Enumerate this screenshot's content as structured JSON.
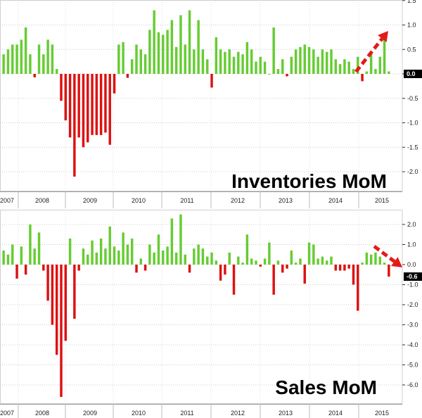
{
  "chart_data": [
    {
      "type": "bar",
      "title": "Inventories MoM",
      "xlabel": "",
      "ylabel": "",
      "ylim": [
        -2.5,
        1.5
      ],
      "yticks": [
        "1.5",
        "1.0",
        "0.5",
        "0.0",
        "-0.5",
        "-1.0",
        "-1.5",
        "-2.0"
      ],
      "ytick_values": [
        1.5,
        1.0,
        0.5,
        0.0,
        -0.5,
        -1.0,
        -1.5,
        -2.0
      ],
      "year_labels": [
        "2007",
        "2008",
        "2009",
        "2010",
        "2011",
        "2012",
        "2013",
        "2014",
        "2015"
      ],
      "last_value_label": "0.0",
      "grid": true,
      "positive_color": "#66cc33",
      "negative_color": "#dd1111",
      "arrow_direction": "up",
      "values": [
        0.4,
        0.5,
        0.6,
        0.6,
        0.7,
        0.95,
        0.4,
        -0.07,
        0.6,
        0.4,
        0.7,
        0.6,
        0.1,
        -0.55,
        -0.95,
        -1.3,
        -2.1,
        -1.3,
        -1.5,
        -1.4,
        -1.25,
        -1.25,
        -1.25,
        -1.2,
        -1.45,
        -0.4,
        0.6,
        0.65,
        -0.08,
        0.3,
        0.6,
        0.5,
        0.4,
        0.9,
        1.3,
        0.85,
        0.8,
        0.9,
        1.1,
        0.55,
        1.2,
        0.6,
        1.3,
        0.5,
        1.1,
        0.5,
        0.3,
        -0.28,
        0.75,
        0.5,
        0.45,
        0.5,
        0.35,
        0.45,
        0.4,
        0.65,
        0.5,
        0.25,
        0.35,
        0.25,
        0.0,
        0.95,
        0.1,
        0.3,
        -0.05,
        0.35,
        0.5,
        0.55,
        0.6,
        0.55,
        0.5,
        0.35,
        0.5,
        0.45,
        0.5,
        0.3,
        0.2,
        0.3,
        0.25,
        0.1,
        0.35,
        -0.15,
        0.05,
        0.45,
        0.1,
        0.35,
        0.7,
        0.05
      ]
    },
    {
      "type": "bar",
      "title": "Sales MoM",
      "xlabel": "",
      "ylabel": "",
      "ylim": [
        -7.0,
        3.0
      ],
      "yticks": [
        "2.0",
        "1.0",
        "0.0",
        "-1.0",
        "-2.0",
        "-3.0",
        "-4.0",
        "-5.0",
        "-6.0"
      ],
      "ytick_values": [
        2.0,
        1.0,
        0.0,
        -1.0,
        -2.0,
        -3.0,
        -4.0,
        -5.0,
        -6.0
      ],
      "year_labels": [
        "2007",
        "2008",
        "2009",
        "2010",
        "2011",
        "2012",
        "2013",
        "2014",
        "2015"
      ],
      "last_value_label": "-0.6",
      "grid": true,
      "positive_color": "#66cc33",
      "negative_color": "#dd1111",
      "arrow_direction": "down",
      "values": [
        0.7,
        0.5,
        1.0,
        -0.7,
        0.9,
        -0.5,
        2.0,
        0.8,
        1.6,
        -0.3,
        -1.8,
        -3.0,
        -4.5,
        -6.6,
        -3.8,
        1.3,
        -2.7,
        -0.3,
        0.8,
        0.5,
        1.2,
        0.6,
        1.3,
        0.8,
        1.9,
        0.9,
        0.7,
        1.6,
        1.0,
        1.3,
        -0.4,
        0.3,
        -0.3,
        1.0,
        0.6,
        1.5,
        0.7,
        0.9,
        2.3,
        0.6,
        2.5,
        0.5,
        -0.4,
        0.8,
        1.0,
        0.8,
        0.4,
        0.6,
        0.2,
        -0.8,
        -0.5,
        0.6,
        -1.5,
        0.4,
        0.1,
        1.5,
        0.3,
        0.2,
        -0.1,
        0.3,
        1.1,
        -1.5,
        0.2,
        -0.4,
        -0.2,
        0.7,
        0.1,
        0.3,
        -0.95,
        1.1,
        1.0,
        0.3,
        0.4,
        0.2,
        0.4,
        -0.3,
        -0.3,
        -0.3,
        -0.2,
        -1.0,
        -2.3,
        0.1,
        0.6,
        0.5,
        0.6,
        0.4,
        0.1,
        -0.6
      ]
    }
  ]
}
